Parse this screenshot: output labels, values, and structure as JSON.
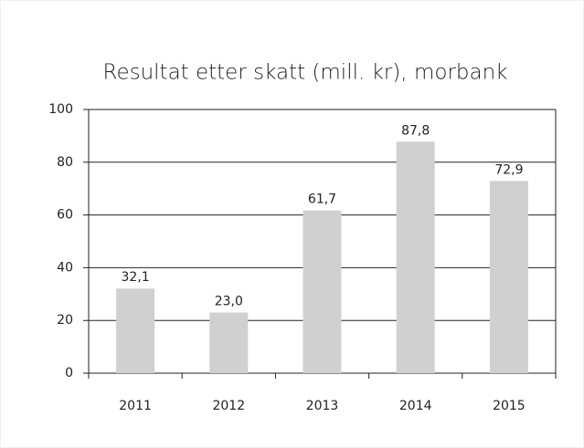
{
  "chart_data": {
    "type": "bar",
    "title": "Resultat etter skatt (mill. kr), morbank",
    "categories": [
      "2011",
      "2012",
      "2013",
      "2014",
      "2015"
    ],
    "values": [
      32.1,
      23.0,
      61.7,
      87.8,
      72.9
    ],
    "value_labels": [
      "32,1",
      "23,0",
      "61,7",
      "87,8",
      "72,9"
    ],
    "color": "#d0d0d0",
    "ylim": [
      0,
      100
    ],
    "yticks": [
      0,
      20,
      40,
      60,
      80,
      100
    ],
    "grid": true
  }
}
